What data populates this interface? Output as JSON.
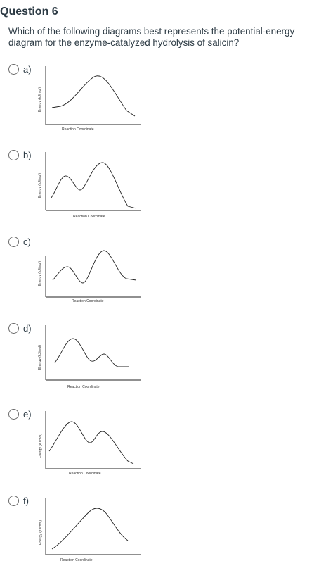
{
  "question": {
    "title": "Question 6",
    "text": "Which of the following diagrams best represents the potential-energy diagram for the enzyme-catalyzed hydrolysis of salicin?"
  },
  "options": [
    {
      "label": "a)",
      "ylabel": "Energy (kJ/mol)",
      "xlabel": "Reaction Coordinate"
    },
    {
      "label": "b)",
      "ylabel": "Energy (kJ/mol)",
      "xlabel": "Reaction Coordinate"
    },
    {
      "label": "c)",
      "ylabel": "Energy (kJ/mol)",
      "xlabel": "Reaction Coordinate"
    },
    {
      "label": "d)",
      "ylabel": "Energy (kJ/mol)",
      "xlabel": "Reaction Coordinate"
    },
    {
      "label": "e)",
      "ylabel": "Energy (kJ/mol)",
      "xlabel": "Reaction Coordinate"
    },
    {
      "label": "f)",
      "ylabel": "Energy (kJ/mol)",
      "xlabel": "Reaction Coordinate"
    }
  ]
}
